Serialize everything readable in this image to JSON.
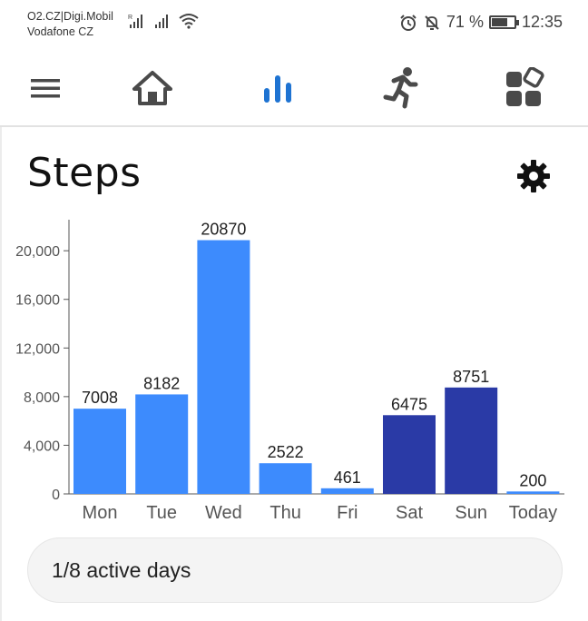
{
  "status_bar": {
    "carrier_line1": "O2.CZ|Digi.Mobil",
    "carrier_line2": "Vodafone CZ",
    "battery_percent": "71 %",
    "battery_level": 0.71,
    "time": "12:35",
    "icons": [
      "signal-r-icon",
      "signal-icon",
      "wifi-icon",
      "alarm-icon",
      "mute-bell-icon",
      "battery-icon"
    ]
  },
  "nav": {
    "items": [
      {
        "name": "menu",
        "icon": "menu-icon"
      },
      {
        "name": "home",
        "icon": "home-icon"
      },
      {
        "name": "stats",
        "icon": "bar-chart-icon",
        "active": true
      },
      {
        "name": "activity",
        "icon": "running-icon"
      },
      {
        "name": "apps",
        "icon": "widgets-icon"
      }
    ],
    "active_color": "#1e73d2",
    "icon_color": "#4a4a4a"
  },
  "page": {
    "title": "Steps",
    "settings_icon": "gear-icon"
  },
  "chart_data": {
    "type": "bar",
    "categories": [
      "Mon",
      "Tue",
      "Wed",
      "Thu",
      "Fri",
      "Sat",
      "Sun",
      "Today"
    ],
    "values": [
      7008,
      8182,
      20870,
      2522,
      461,
      6475,
      8751,
      200
    ],
    "data_labels": [
      "7008",
      "8182",
      "20870",
      "2522",
      "461",
      "6475",
      "8751",
      "200"
    ],
    "bar_colors": [
      "#3d8bfd",
      "#3d8bfd",
      "#3d8bfd",
      "#3d8bfd",
      "#3d8bfd",
      "#2a3aa6",
      "#2a3aa6",
      "#3d8bfd"
    ],
    "yticks": [
      0,
      4000,
      8000,
      12000,
      16000,
      20000
    ],
    "ytick_labels": [
      "0",
      "4,000",
      "8,000",
      "12,000",
      "16,000",
      "20,000"
    ],
    "ylim": [
      0,
      23000
    ],
    "grid": false,
    "title": "",
    "xlabel": "",
    "ylabel": ""
  },
  "summary": {
    "active_days": "1/8 active days"
  }
}
